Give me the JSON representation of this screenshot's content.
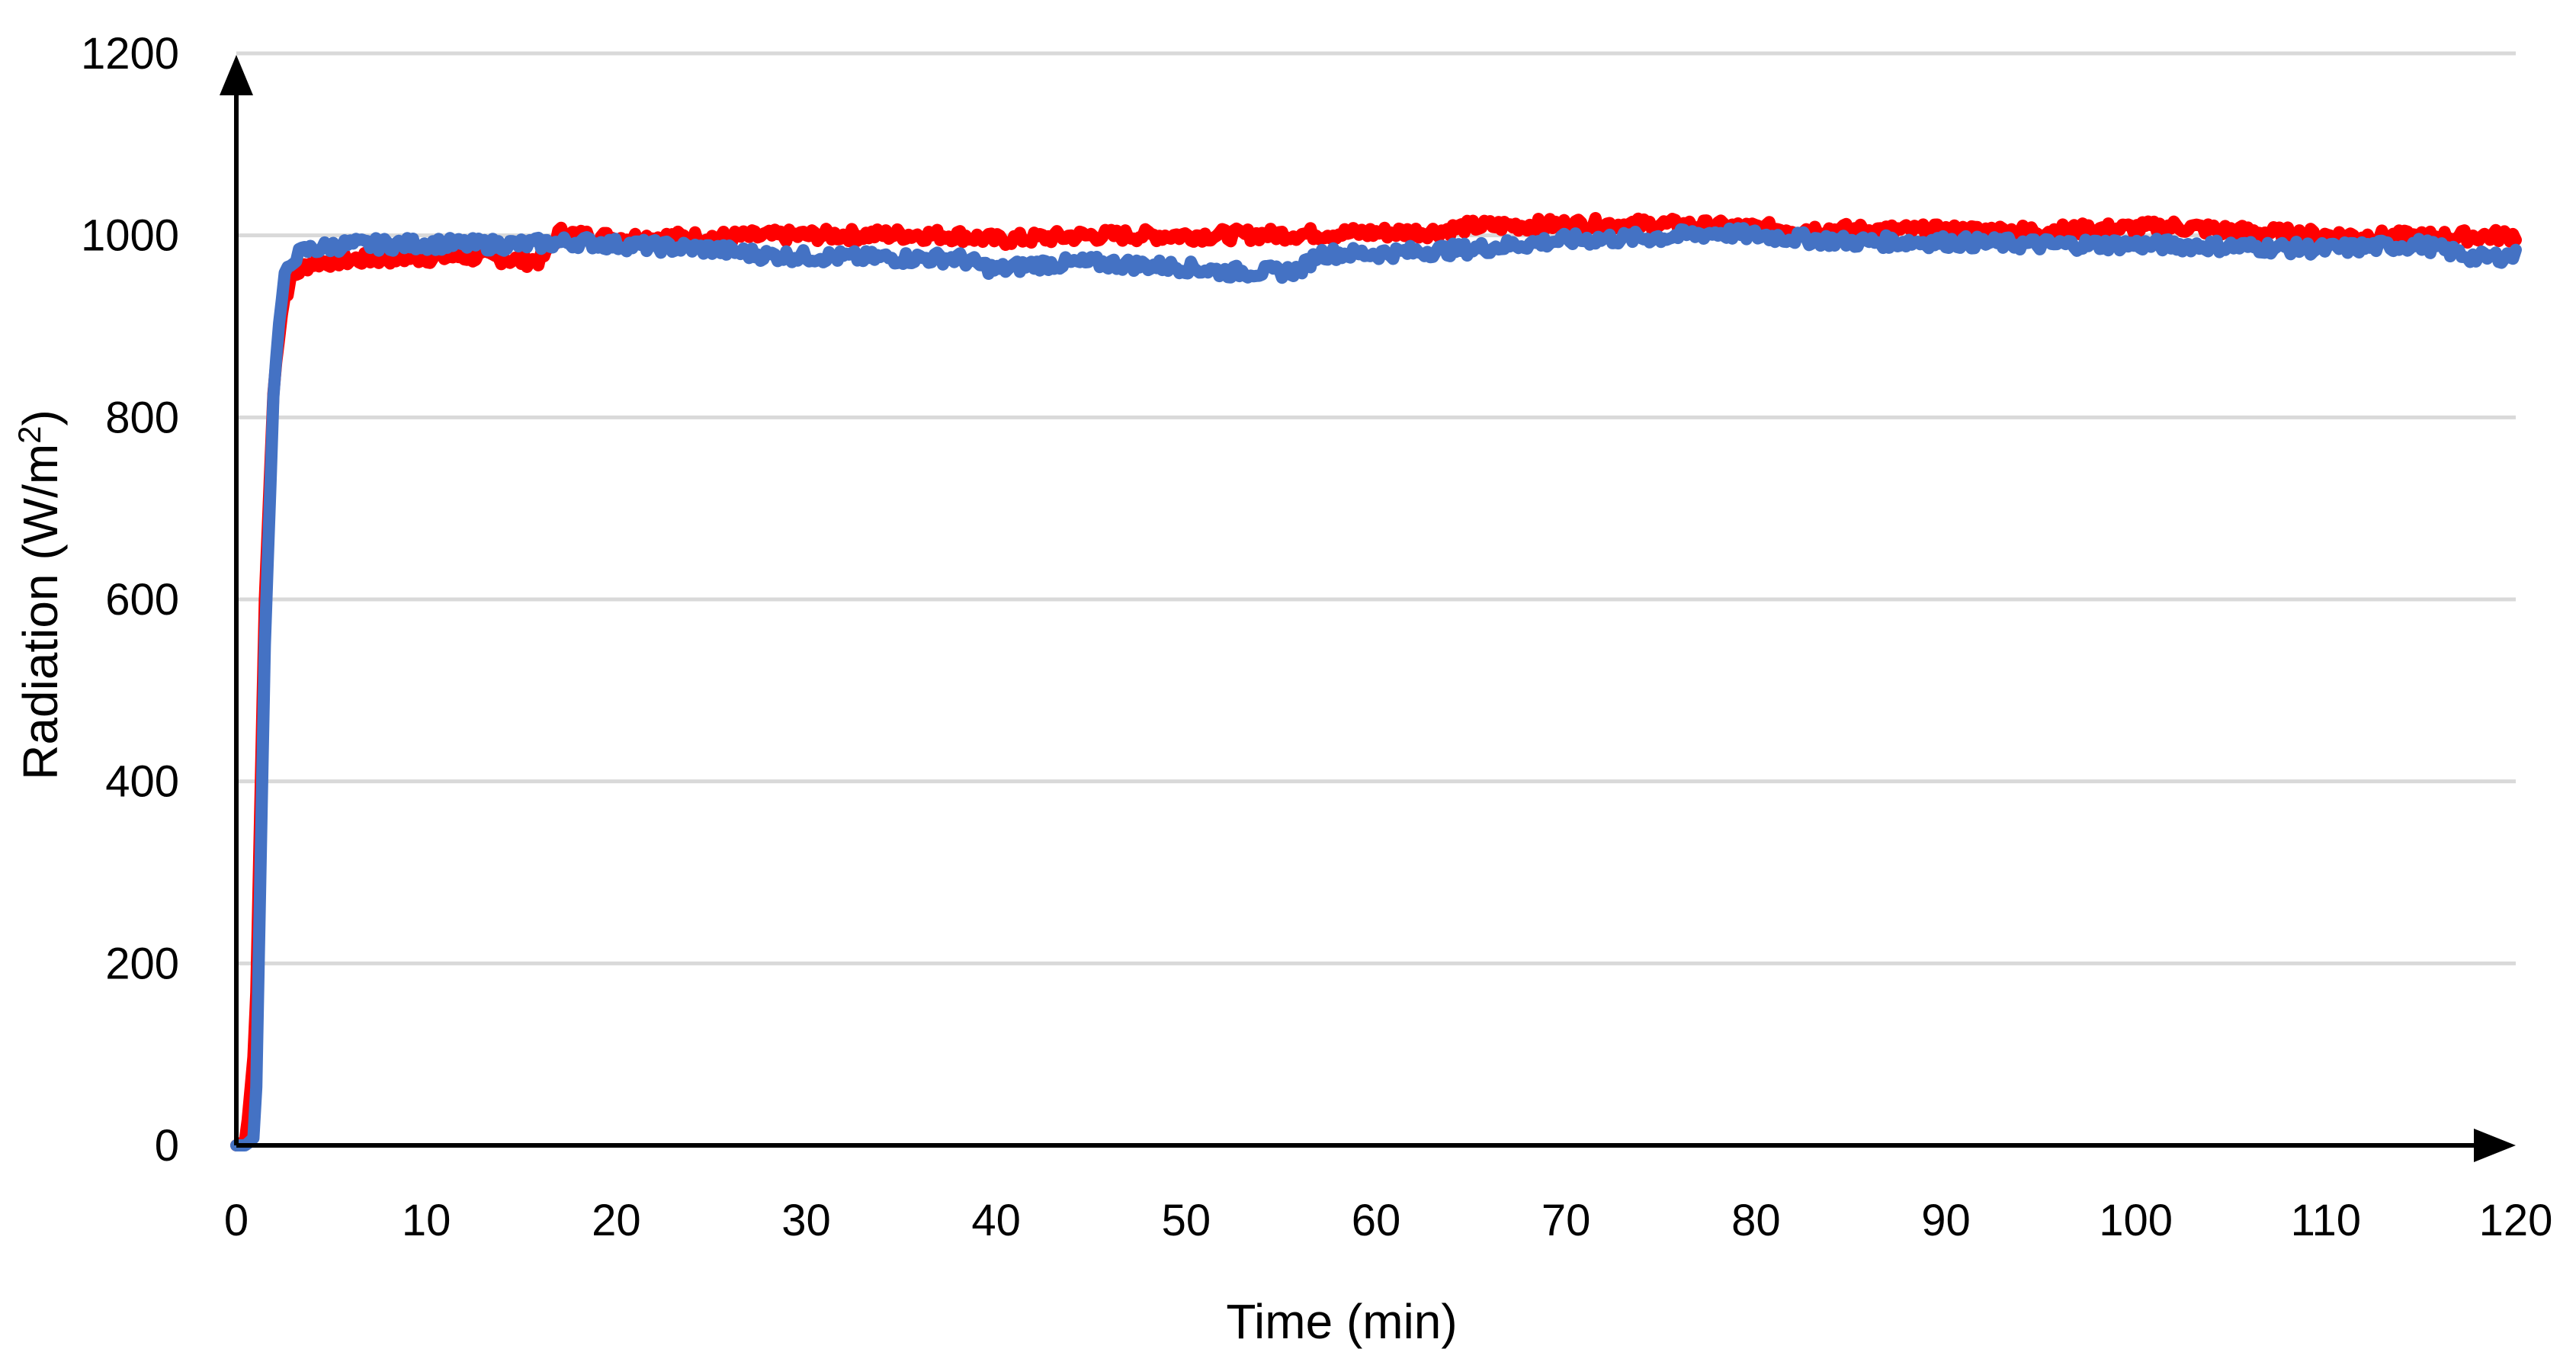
{
  "chart_data": {
    "type": "line",
    "title": "",
    "xlabel": "Time (min)",
    "ylabel": {
      "main": "Radiation (W/m",
      "sup": "2",
      "close": ")"
    },
    "xlim": [
      0,
      120
    ],
    "ylim": [
      0,
      1200
    ],
    "xticks": [
      0,
      10,
      20,
      30,
      40,
      50,
      60,
      70,
      80,
      90,
      100,
      110,
      120
    ],
    "yticks": [
      0,
      200,
      400,
      600,
      800,
      1000,
      1200
    ],
    "grid": "horizontal",
    "legend": "none",
    "series": [
      {
        "color": "#ff0000",
        "x": [
          0,
          0.5,
          1,
          1.5,
          2,
          2.5,
          3,
          3.5,
          4,
          5,
          6,
          8,
          10,
          12,
          14,
          15,
          16,
          16.5,
          17,
          18,
          20,
          22,
          25,
          30,
          35,
          38,
          40,
          45,
          50,
          55,
          60,
          63,
          65,
          70,
          75,
          80,
          85,
          90,
          95,
          100,
          102,
          105,
          110,
          115,
          120
        ],
        "y": [
          0,
          5,
          120,
          600,
          850,
          930,
          955,
          965,
          970,
          972,
          973,
          975,
          976,
          977,
          975,
          972,
          973,
          985,
          1003,
          1000,
          997,
          998,
          998,
          1000,
          1001,
          1000,
          995,
          1000,
          1000,
          1001,
          1003,
          1004,
          1010,
          1012,
          1012,
          1008,
          1006,
          1005,
          1005,
          1008,
          1010,
          1005,
          1000,
          998,
          1000
        ]
      },
      {
        "color": "#4472c4",
        "x": [
          0,
          0.5,
          1,
          1.5,
          2,
          2.5,
          3,
          3.5,
          4,
          5,
          6,
          8,
          10,
          12,
          15,
          18,
          20,
          22,
          25,
          28,
          30,
          35,
          38,
          40,
          42,
          45,
          50,
          52,
          55,
          56,
          57,
          60,
          65,
          70,
          75,
          78,
          80,
          85,
          90,
          95,
          100,
          105,
          110,
          115,
          118,
          120
        ],
        "y": [
          0,
          0,
          10,
          550,
          850,
          950,
          975,
          982,
          985,
          988,
          990,
          990,
          991,
          990,
          990,
          993,
          990,
          988,
          985,
          978,
          977,
          975,
          975,
          962,
          968,
          970,
          965,
          960,
          960,
          962,
          980,
          980,
          985,
          995,
          998,
          1003,
          1000,
          993,
          993,
          990,
          990,
          988,
          985,
          990,
          975,
          978
        ]
      }
    ]
  }
}
